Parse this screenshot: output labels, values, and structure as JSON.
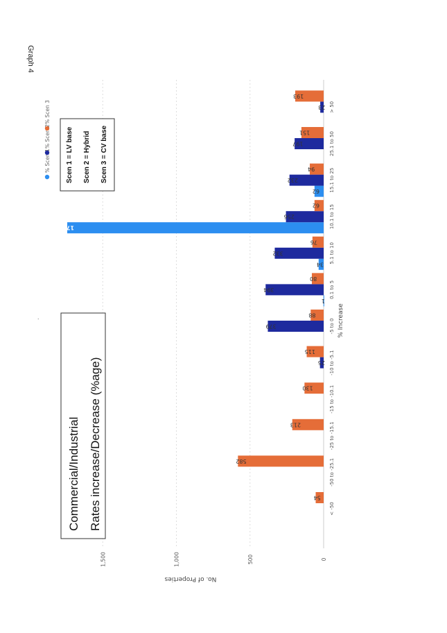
{
  "page_label": "Graph 4",
  "stray_mark": ".",
  "title_box": {
    "line1": "Commercial/Industrial",
    "line2": "Rates increase/Decrease (%age)"
  },
  "scenario_box": [
    "Scen 1 = LV base",
    "Scen 2 = Hybrid",
    "Scen 3 = CV base"
  ],
  "colors": {
    "scen1": "#2c8ef0",
    "scen2": "#1e2a9e",
    "scen3": "#e56d38"
  },
  "chart_data": {
    "type": "bar",
    "xlabel": "% Increase",
    "ylabel": "No. of Properties",
    "ylim": [
      0,
      1750
    ],
    "yticks": [
      {
        "value": 0,
        "label": "0"
      },
      {
        "value": 500,
        "label": "500"
      },
      {
        "value": 1000,
        "label": "1,000"
      },
      {
        "value": 1500,
        "label": "1,500"
      }
    ],
    "grid": true,
    "legend_position": "top",
    "categories": [
      "< -50",
      "-50 to -25.1",
      "-25 to -15.1",
      "-15 to -10.1",
      "-10 to -5.1",
      "-5 to 0",
      "0.1 to 5",
      "5.1 to 10",
      "10.1 to 15",
      "15.1 to 25",
      "25.1 to 50",
      "> 50"
    ],
    "series": [
      {
        "name": "% Scen 1",
        "values": [
          null,
          null,
          null,
          null,
          null,
          null,
          1,
          34,
          1741,
          62,
          null,
          null
        ]
      },
      {
        "name": "% Scen 2",
        "values": [
          null,
          null,
          null,
          null,
          25,
          379,
          394,
          332,
          256,
          232,
          197,
          23
        ]
      },
      {
        "name": "% Scen 3",
        "values": [
          54,
          582,
          213,
          130,
          115,
          88,
          80,
          76,
          62,
          94,
          151,
          193
        ]
      }
    ]
  }
}
